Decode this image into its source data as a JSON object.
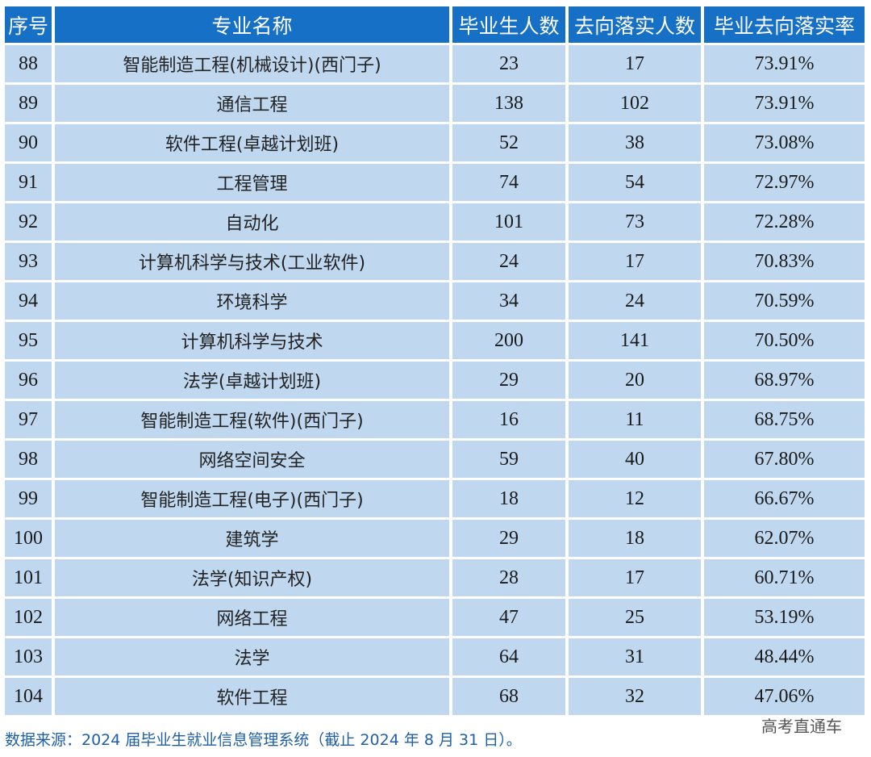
{
  "table": {
    "headers": [
      "序号",
      "专业名称",
      "毕业生人数",
      "去向落实人数",
      "毕业去向落实率"
    ],
    "rows": [
      {
        "no": "88",
        "major": "智能制造工程(机械设计)(西门子)",
        "graduates": "23",
        "placed": "17",
        "rate": "73.91%"
      },
      {
        "no": "89",
        "major": "通信工程",
        "graduates": "138",
        "placed": "102",
        "rate": "73.91%"
      },
      {
        "no": "90",
        "major": "软件工程(卓越计划班)",
        "graduates": "52",
        "placed": "38",
        "rate": "73.08%"
      },
      {
        "no": "91",
        "major": "工程管理",
        "graduates": "74",
        "placed": "54",
        "rate": "72.97%"
      },
      {
        "no": "92",
        "major": "自动化",
        "graduates": "101",
        "placed": "73",
        "rate": "72.28%"
      },
      {
        "no": "93",
        "major": "计算机科学与技术(工业软件)",
        "graduates": "24",
        "placed": "17",
        "rate": "70.83%"
      },
      {
        "no": "94",
        "major": "环境科学",
        "graduates": "34",
        "placed": "24",
        "rate": "70.59%"
      },
      {
        "no": "95",
        "major": "计算机科学与技术",
        "graduates": "200",
        "placed": "141",
        "rate": "70.50%"
      },
      {
        "no": "96",
        "major": "法学(卓越计划班)",
        "graduates": "29",
        "placed": "20",
        "rate": "68.97%"
      },
      {
        "no": "97",
        "major": "智能制造工程(软件)(西门子)",
        "graduates": "16",
        "placed": "11",
        "rate": "68.75%"
      },
      {
        "no": "98",
        "major": "网络空间安全",
        "graduates": "59",
        "placed": "40",
        "rate": "67.80%"
      },
      {
        "no": "99",
        "major": "智能制造工程(电子)(西门子)",
        "graduates": "18",
        "placed": "12",
        "rate": "66.67%"
      },
      {
        "no": "100",
        "major": "建筑学",
        "graduates": "29",
        "placed": "18",
        "rate": "62.07%"
      },
      {
        "no": "101",
        "major": "法学(知识产权)",
        "graduates": "28",
        "placed": "17",
        "rate": "60.71%"
      },
      {
        "no": "102",
        "major": "网络工程",
        "graduates": "47",
        "placed": "25",
        "rate": "53.19%"
      },
      {
        "no": "103",
        "major": "法学",
        "graduates": "64",
        "placed": "31",
        "rate": "48.44%"
      },
      {
        "no": "104",
        "major": "软件工程",
        "graduates": "68",
        "placed": "32",
        "rate": "47.06%"
      }
    ]
  },
  "footer": {
    "source_note": "数据来源：2024 届毕业生就业信息管理系统（截止 2024 年 8 月 31 日）。"
  },
  "watermark": "高考直通车",
  "colors": {
    "header_bg": "#1570c6",
    "row_bg": "#c0d8ef",
    "footer_text": "#1e5fa8"
  }
}
